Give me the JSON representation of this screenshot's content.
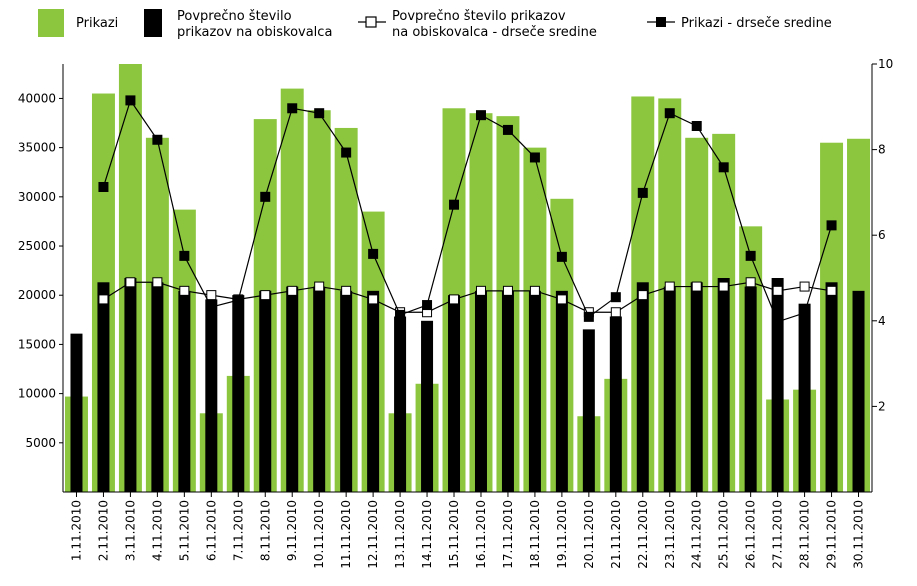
{
  "chart_data": {
    "type": "bar",
    "categories": [
      "1.11.2010",
      "2.11.2010",
      "3.11.2010",
      "4.11.2010",
      "5.11.2010",
      "6.11.2010",
      "7.11.2010",
      "8.11.2010",
      "9.11.2010",
      "10.11.2010",
      "11.11.2010",
      "12.11.2010",
      "13.11.2010",
      "14.11.2010",
      "15.11.2010",
      "16.11.2010",
      "17.11.2010",
      "18.11.2010",
      "19.11.2010",
      "20.11.2010",
      "21.11.2010",
      "22.11.2010",
      "23.11.2010",
      "24.11.2010",
      "25.11.2010",
      "26.11.2010",
      "27.11.2010",
      "28.11.2010",
      "29.11.2010",
      "30.11.2010"
    ],
    "series": [
      {
        "name": "Prikazi",
        "kind": "bar",
        "axis": "left",
        "color": "#8cc63f",
        "values": [
          9700,
          40500,
          43500,
          36000,
          28700,
          8000,
          11800,
          37900,
          41000,
          38800,
          37000,
          28500,
          8000,
          11000,
          39000,
          38500,
          38200,
          35000,
          29800,
          7700,
          11500,
          40200,
          40000,
          36000,
          36400,
          27000,
          9400,
          10400,
          35500,
          35900
        ]
      },
      {
        "name": "Povprečno število prikazov na obiskovalca",
        "kind": "bar",
        "axis": "right",
        "color": "#000000",
        "values": [
          3.7,
          4.9,
          5.0,
          4.9,
          4.7,
          4.5,
          4.6,
          4.7,
          4.8,
          4.8,
          4.7,
          4.7,
          4.1,
          4.0,
          4.6,
          4.7,
          4.7,
          4.7,
          4.7,
          3.8,
          4.1,
          4.9,
          4.8,
          4.9,
          5.0,
          4.8,
          5.0,
          4.4,
          4.9,
          4.7
        ]
      },
      {
        "name": "Povprečno število prikazov na obiskovalca - drseče sredine",
        "kind": "line",
        "marker": "open-square",
        "axis": "right",
        "values": [
          null,
          4.5,
          4.9,
          4.9,
          4.7,
          4.6,
          4.5,
          4.6,
          4.7,
          4.8,
          4.7,
          4.5,
          4.2,
          4.2,
          4.5,
          4.7,
          4.7,
          4.7,
          4.5,
          4.2,
          4.2,
          4.6,
          4.8,
          4.8,
          4.8,
          4.9,
          4.7,
          4.8,
          4.7,
          null
        ]
      },
      {
        "name": "Prikazi - drseče sredine",
        "kind": "line",
        "marker": "filled-square",
        "axis": "left",
        "values": [
          null,
          31000,
          39800,
          35800,
          24000,
          18800,
          19500,
          30000,
          39000,
          38500,
          34500,
          24200,
          18000,
          19000,
          29200,
          38300,
          36800,
          34000,
          23900,
          17800,
          19800,
          30400,
          38500,
          37200,
          33000,
          24000,
          17300,
          18200,
          27100,
          null
        ]
      }
    ],
    "y_left": {
      "ticks": [
        "5000",
        "10000",
        "15000",
        "20000",
        "25000",
        "30000",
        "35000",
        "40000"
      ],
      "ylim": [
        0,
        43500
      ]
    },
    "y_right": {
      "ticks": [
        "2",
        "4",
        "6",
        "8",
        "10"
      ],
      "ylim": [
        0,
        10
      ]
    },
    "grid": false,
    "legend_position": "top"
  }
}
